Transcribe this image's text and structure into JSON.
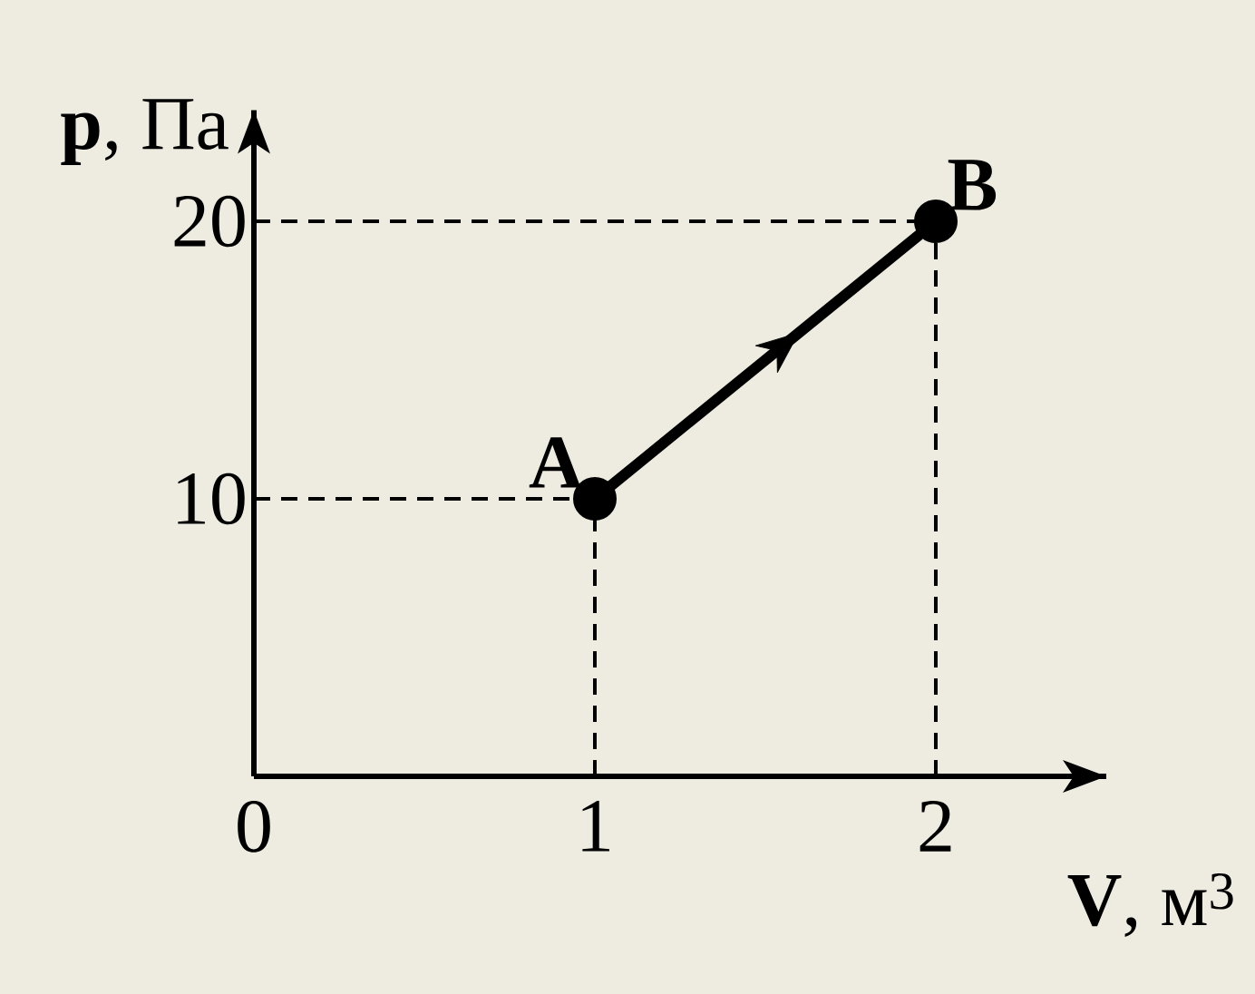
{
  "chart_data": {
    "type": "line",
    "xlabel": "**V**, м$^{3}$",
    "ylabel": "**p**, Па",
    "x": [
      1,
      2
    ],
    "series": [
      {
        "color": "#000000",
        "values": [
          10,
          20
        ]
      }
    ],
    "xlim": [
      0,
      2.5
    ],
    "ylim": [
      0,
      24
    ],
    "xticks": [
      0,
      1,
      2
    ],
    "yticks": [
      10,
      20
    ],
    "marker": "circle",
    "line_style": "solid",
    "grid": false,
    "ref_lines": [
      {
        "axis": "x",
        "value": 1,
        "color": "#000000",
        "line_style": "dashed"
      },
      {
        "axis": "x",
        "value": 2,
        "color": "#000000",
        "line_style": "dashed"
      },
      {
        "axis": "y",
        "value": 10,
        "color": "#000000",
        "line_style": "dashed"
      },
      {
        "axis": "y",
        "value": 20,
        "color": "#000000",
        "line_style": "dashed"
      }
    ],
    "annotations": [
      {
        "text": "A",
        "x": 1,
        "y": 10
      },
      {
        "text": "B",
        "x": 2,
        "y": 20
      }
    ]
  }
}
